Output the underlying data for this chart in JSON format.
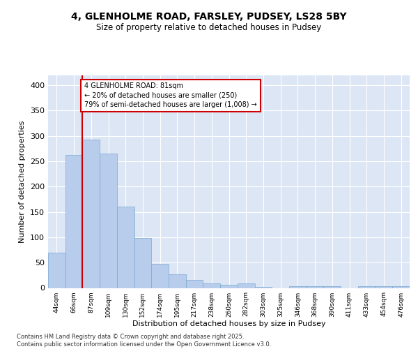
{
  "title_line1": "4, GLENHOLME ROAD, FARSLEY, PUDSEY, LS28 5BY",
  "title_line2": "Size of property relative to detached houses in Pudsey",
  "xlabel": "Distribution of detached houses by size in Pudsey",
  "ylabel": "Number of detached properties",
  "categories": [
    "44sqm",
    "66sqm",
    "87sqm",
    "109sqm",
    "130sqm",
    "152sqm",
    "174sqm",
    "195sqm",
    "217sqm",
    "238sqm",
    "260sqm",
    "282sqm",
    "303sqm",
    "325sqm",
    "346sqm",
    "368sqm",
    "390sqm",
    "411sqm",
    "433sqm",
    "454sqm",
    "476sqm"
  ],
  "values": [
    70,
    263,
    293,
    265,
    160,
    99,
    47,
    27,
    16,
    9,
    6,
    9,
    2,
    0,
    3,
    4,
    3,
    0,
    3,
    4,
    4
  ],
  "bar_color": "#b8ccec",
  "bar_edge_color": "#7aaad0",
  "vline_x": 1.5,
  "vline_color": "#cc0000",
  "annotation_text": "4 GLENHOLME ROAD: 81sqm\n← 20% of detached houses are smaller (250)\n79% of semi-detached houses are larger (1,008) →",
  "annotation_box_color": "#cc0000",
  "background_color": "#dde6f5",
  "grid_color": "#ffffff",
  "footer_text": "Contains HM Land Registry data © Crown copyright and database right 2025.\nContains public sector information licensed under the Open Government Licence v3.0.",
  "ylim": [
    0,
    420
  ],
  "yticks": [
    0,
    50,
    100,
    150,
    200,
    250,
    300,
    350,
    400
  ]
}
